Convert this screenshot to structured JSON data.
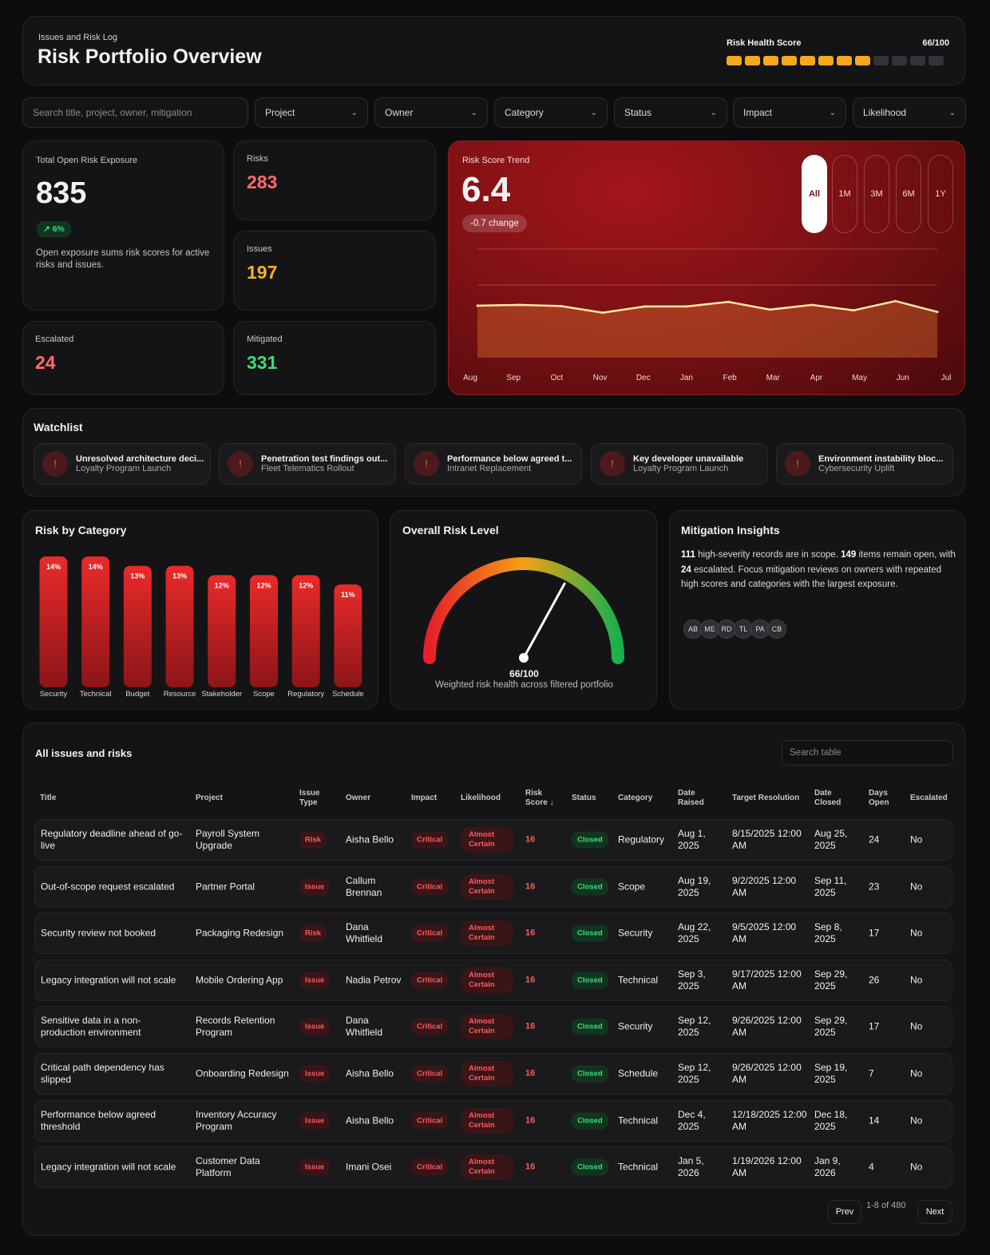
{
  "header": {
    "subtitle": "Issues and Risk Log",
    "title": "Risk Portfolio Overview",
    "health_label": "Risk Health Score",
    "health_value": "66/100",
    "health_segments_filled": 8,
    "health_segments_total": 12
  },
  "filters": {
    "search_placeholder": "Search title, project, owner, mitigation",
    "selects": [
      "Project",
      "Owner",
      "Category",
      "Status",
      "Impact",
      "Likelihood"
    ]
  },
  "kpis": {
    "exposure_label": "Total Open Risk Exposure",
    "exposure_value": "835",
    "exposure_delta": "↗ 6%",
    "exposure_note": "Open exposure sums risk scores for active risks and issues.",
    "risks_label": "Risks",
    "risks_value": "283",
    "issues_label": "Issues",
    "issues_value": "197",
    "escalated_label": "Escalated",
    "escalated_value": "24",
    "mitigated_label": "Mitigated",
    "mitigated_value": "331"
  },
  "trend": {
    "label": "Risk Score Trend",
    "value": "6.4",
    "change": "-0.7 change",
    "ranges": [
      "All",
      "1M",
      "3M",
      "6M",
      "1Y"
    ],
    "active_range": "All"
  },
  "watchlist": {
    "title": "Watchlist",
    "items": [
      {
        "title": "Unresolved architecture deci...",
        "project": "Loyalty Program Launch"
      },
      {
        "title": "Penetration test findings out...",
        "project": "Fleet Telematics Rollout"
      },
      {
        "title": "Performance below agreed t...",
        "project": "Intranet Replacement"
      },
      {
        "title": "Key developer unavailable",
        "project": "Loyalty Program Launch"
      },
      {
        "title": "Environment instability bloc...",
        "project": "Cybersecurity Uplift"
      }
    ]
  },
  "category": {
    "title": "Risk by Category"
  },
  "gauge": {
    "title": "Overall Risk Level",
    "value_text": "66/100",
    "value": 66,
    "caption": "Weighted risk health across filtered portfolio"
  },
  "insights": {
    "title": "Mitigation Insights",
    "n1": "111",
    "t1": " high-severity records are in scope. ",
    "n2": "149",
    "t2": " items remain open, with ",
    "n3": "24",
    "t3": " escalated. Focus mitigation reviews on owners with repeated high scores and categories with the largest exposure.",
    "avatars": [
      "AB",
      "ME",
      "RD",
      "TL",
      "PA",
      "CB"
    ]
  },
  "chart_data": [
    {
      "type": "line",
      "title": "Risk Score Trend",
      "x": [
        "Aug",
        "Sep",
        "Oct",
        "Nov",
        "Dec",
        "Jan",
        "Feb",
        "Mar",
        "Apr",
        "May",
        "Jun",
        "Jul"
      ],
      "series": [
        {
          "values": [
            6.7,
            6.8,
            6.65,
            5.8,
            6.6,
            6.6,
            7.2,
            6.2,
            6.8,
            6.1,
            7.3,
            5.9
          ]
        }
      ],
      "ylim": [
        0,
        14
      ],
      "grid": true
    },
    {
      "type": "bar",
      "title": "Risk by Category",
      "categories": [
        "Security",
        "Technical",
        "Budget",
        "Resource",
        "Stakeholder",
        "Scope",
        "Regulatory",
        "Schedule"
      ],
      "values": [
        14,
        14,
        13,
        13,
        12,
        12,
        12,
        11
      ],
      "labels": [
        "14%",
        "14%",
        "13%",
        "13%",
        "12%",
        "12%",
        "12%",
        "11%"
      ]
    }
  ],
  "table": {
    "title": "All issues and risks",
    "search_placeholder": "Search table",
    "columns": [
      "Title",
      "Project",
      "Issue Type",
      "Owner",
      "Impact",
      "Likelihood",
      "Risk Score ↓",
      "Status",
      "Category",
      "Date Raised",
      "Target Resolution",
      "Date Closed",
      "Days Open",
      "Escalated"
    ],
    "rows": [
      {
        "title": "Regulatory deadline ahead of go-live",
        "project": "Payroll System Upgrade",
        "type": "Risk",
        "owner": "Aisha Bello",
        "impact": "Critical",
        "likelihood": "Almost Certain",
        "score": "16",
        "status": "Closed",
        "category": "Regulatory",
        "raised": "Aug 1, 2025",
        "target": "8/15/2025 12:00 AM",
        "closed": "Aug 25, 2025",
        "days": "24",
        "escalated": "No"
      },
      {
        "title": "Out-of-scope request escalated",
        "project": "Partner Portal",
        "type": "Issue",
        "owner": "Callum Brennan",
        "impact": "Critical",
        "likelihood": "Almost Certain",
        "score": "16",
        "status": "Closed",
        "category": "Scope",
        "raised": "Aug 19, 2025",
        "target": "9/2/2025 12:00 AM",
        "closed": "Sep 11, 2025",
        "days": "23",
        "escalated": "No"
      },
      {
        "title": "Security review not booked",
        "project": "Packaging Redesign",
        "type": "Risk",
        "owner": "Dana Whitfield",
        "impact": "Critical",
        "likelihood": "Almost Certain",
        "score": "16",
        "status": "Closed",
        "category": "Security",
        "raised": "Aug 22, 2025",
        "target": "9/5/2025 12:00 AM",
        "closed": "Sep 8, 2025",
        "days": "17",
        "escalated": "No"
      },
      {
        "title": "Legacy integration will not scale",
        "project": "Mobile Ordering App",
        "type": "Issue",
        "owner": "Nadia Petrov",
        "impact": "Critical",
        "likelihood": "Almost Certain",
        "score": "16",
        "status": "Closed",
        "category": "Technical",
        "raised": "Sep 3, 2025",
        "target": "9/17/2025 12:00 AM",
        "closed": "Sep 29, 2025",
        "days": "26",
        "escalated": "No"
      },
      {
        "title": "Sensitive data in a non-production environment",
        "project": "Records Retention Program",
        "type": "Issue",
        "owner": "Dana Whitfield",
        "impact": "Critical",
        "likelihood": "Almost Certain",
        "score": "16",
        "status": "Closed",
        "category": "Security",
        "raised": "Sep 12, 2025",
        "target": "9/26/2025 12:00 AM",
        "closed": "Sep 29, 2025",
        "days": "17",
        "escalated": "No"
      },
      {
        "title": "Critical path dependency has slipped",
        "project": "Onboarding Redesign",
        "type": "Issue",
        "owner": "Aisha Bello",
        "impact": "Critical",
        "likelihood": "Almost Certain",
        "score": "16",
        "status": "Closed",
        "category": "Schedule",
        "raised": "Sep 12, 2025",
        "target": "9/26/2025 12:00 AM",
        "closed": "Sep 19, 2025",
        "days": "7",
        "escalated": "No"
      },
      {
        "title": "Performance below agreed threshold",
        "project": "Inventory Accuracy Program",
        "type": "Issue",
        "owner": "Aisha Bello",
        "impact": "Critical",
        "likelihood": "Almost Certain",
        "score": "16",
        "status": "Closed",
        "category": "Technical",
        "raised": "Dec 4, 2025",
        "target": "12/18/2025 12:00 AM",
        "closed": "Dec 18, 2025",
        "days": "14",
        "escalated": "No"
      },
      {
        "title": "Legacy integration will not scale",
        "project": "Customer Data Platform",
        "type": "Issue",
        "owner": "Imani Osei",
        "impact": "Critical",
        "likelihood": "Almost Certain",
        "score": "16",
        "status": "Closed",
        "category": "Technical",
        "raised": "Jan 5, 2026",
        "target": "1/19/2026 12:00 AM",
        "closed": "Jan 9, 2026",
        "days": "4",
        "escalated": "No"
      }
    ],
    "pagination": {
      "prev": "Prev",
      "info": "1-8 of 480",
      "next": "Next"
    }
  }
}
